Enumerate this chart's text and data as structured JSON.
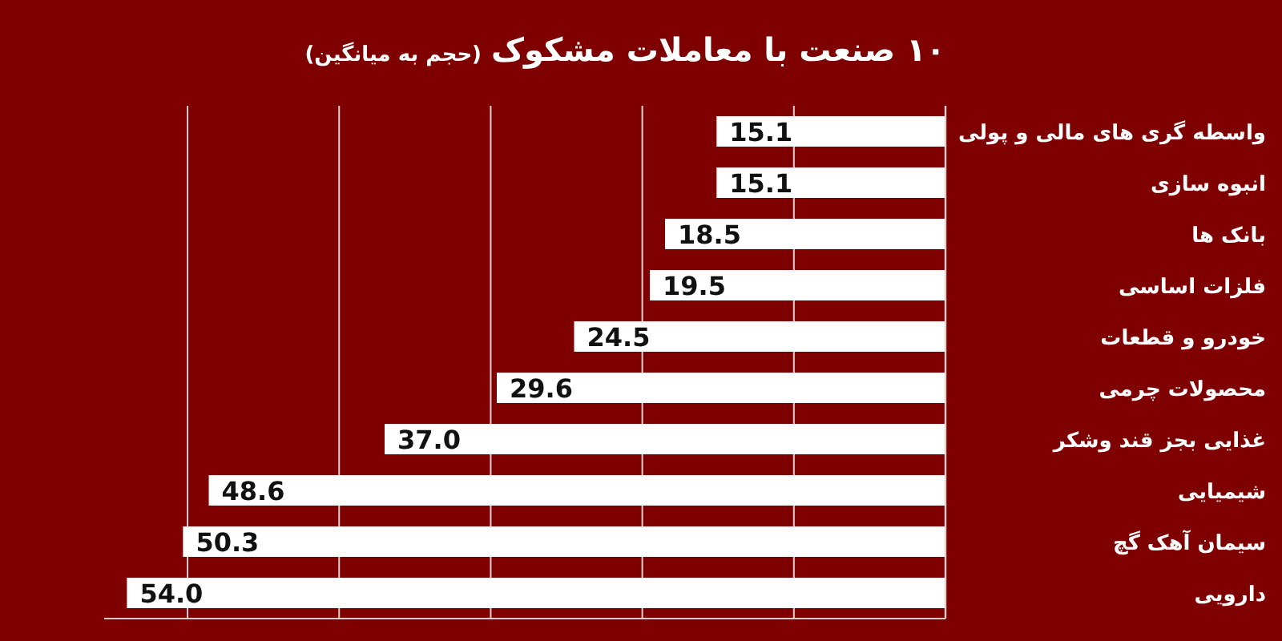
{
  "chart_data": {
    "type": "bar",
    "orientation": "horizontal",
    "title": "۱۰ صنعت با معاملات مشکوک",
    "subtitle": "(حجم به میانگین)",
    "categories": [
      "واسطه گری های مالی و پولی",
      "انبوه سازی",
      "بانک ها",
      "فلزات اساسی",
      "خودرو و قطعات",
      "محصولات چرمی",
      "غذایی بجز قند وشکر",
      "شیمیایی",
      "سیمان آهک گچ",
      "دارویی"
    ],
    "values": [
      15.1,
      15.1,
      18.5,
      19.5,
      24.5,
      29.6,
      37.0,
      48.6,
      50.3,
      54.0
    ],
    "value_labels": [
      "15.1",
      "15.1",
      "18.5",
      "19.5",
      "24.5",
      "29.6",
      "37.0",
      "48.6",
      "50.3",
      "54.0"
    ],
    "color": "#ffffff",
    "xlim": [
      55.5,
      0
    ],
    "xticks": [
      {
        "value": 0,
        "label": null
      },
      {
        "value": 10,
        "label": null
      },
      {
        "value": 20,
        "label": null
      },
      {
        "value": 30,
        "label": null
      },
      {
        "value": 40,
        "label": null
      },
      {
        "value": 50,
        "label": null
      }
    ],
    "grid": "x",
    "tick_labels": "y"
  }
}
